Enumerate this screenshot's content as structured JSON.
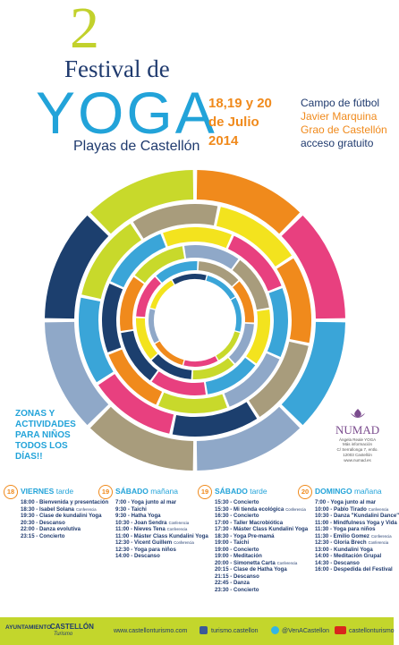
{
  "header": {
    "edition": "2",
    "title_line1": "Festival de",
    "title_main": "YOGA",
    "subtitle": "Playas de Castellón",
    "dates": [
      "18,19 y 20",
      "de Julio",
      "2014"
    ],
    "venue": [
      "Campo de fútbol",
      "Javier Marquina",
      "Grao de Castellón",
      "acceso gratuito"
    ]
  },
  "kids_note": [
    "ZONAS Y",
    "ACTIVIDADES",
    "PARA NIÑOS",
    "TODOS LOS",
    "DÍAS!!"
  ],
  "sponsor": {
    "name": "NUMAD",
    "tagline": "Ángela Reale YOGA",
    "info": [
      "Más información",
      "C/ Serrallonga 7, entlo.",
      "12003 Castellón",
      "www.numad.es"
    ]
  },
  "schedule": [
    {
      "day_number": "18",
      "day": "VIERNES",
      "part": "tarde",
      "items": [
        {
          "text": "18:00 - Bienvenida y presentación"
        },
        {
          "text": "18:30 - Isabel Solana",
          "tag": "Conferencia"
        },
        {
          "text": "19:30 - Clase de kundalini Yoga"
        },
        {
          "text": "20:30 - Descanso"
        },
        {
          "text": "22:00 - Danza evolutiva"
        },
        {
          "text": "23:15 - Concierto"
        }
      ]
    },
    {
      "day_number": "19",
      "day": "SÁBADO",
      "part": "mañana",
      "items": [
        {
          "text": "7:00 - Yoga junto al mar"
        },
        {
          "text": "9:30 - Taichi"
        },
        {
          "text": "9:30 - Hatha Yoga"
        },
        {
          "text": "10:30 - Joan Sendra",
          "tag": "Conferencia"
        },
        {
          "text": "11:00 - Nieves Tena",
          "tag": "Conferencia"
        },
        {
          "text": "11:00 - Máster Class Kundalini Yoga"
        },
        {
          "text": "12:30 - Vicent Guillem",
          "tag": "Conferencia"
        },
        {
          "text": "12:30 - Yoga para niños"
        },
        {
          "text": "14:00 - Descanso"
        }
      ]
    },
    {
      "day_number": "19",
      "day": "SÁBADO",
      "part": "tarde",
      "items": [
        {
          "text": "15:30 - Concierto"
        },
        {
          "text": "15:30 - Mi tienda ecológica",
          "tag": "Conferencia"
        },
        {
          "text": "16:30 - Concierto"
        },
        {
          "text": "17:00 - Taller Macrobiótica"
        },
        {
          "text": "17:30 - Máster Class Kundalini Yoga"
        },
        {
          "text": "18:30 - Yoga Pre-mamá"
        },
        {
          "text": "19:00 - Taichi"
        },
        {
          "text": "19:00 - Concierto"
        },
        {
          "text": "19:00 - Meditación"
        },
        {
          "text": "20:00 - Simonetta Carta",
          "tag": "Conferencia"
        },
        {
          "text": "20:15 - Clase de Hatha Yoga"
        },
        {
          "text": "21:15 - Descanso"
        },
        {
          "text": "22:45 - Danza"
        },
        {
          "text": "23:30 - Concierto"
        }
      ]
    },
    {
      "day_number": "20",
      "day": "DOMINGO",
      "part": "mañana",
      "items": [
        {
          "text": "7:00 - Yoga junto al mar"
        },
        {
          "text": "10:00 - Pablo Tirado",
          "tag": "Conferencia"
        },
        {
          "text": "10:30 - Danza \"Kundalini Dance\""
        },
        {
          "text": "11:00 - Mindfulness Yoga y Vida"
        },
        {
          "text": "11:30 - Yoga para niños"
        },
        {
          "text": "11:30 - Emilio Gomez",
          "tag": "Conferencia"
        },
        {
          "text": "12:30 - Gloria Brech",
          "tag": "Conferencia"
        },
        {
          "text": "13:00 - Kundalini Yoga"
        },
        {
          "text": "14:00 - Meditación Grupal"
        },
        {
          "text": "14:30 - Descanso"
        },
        {
          "text": "16:00 - Despedida del Festival"
        }
      ]
    }
  ],
  "footer": {
    "org": [
      "AYUNTAMIENTO",
      "CASTELLÓN",
      "Turismo"
    ],
    "website": "www.castellonturismo.com",
    "facebook": "turismo.castellon",
    "twitter": "@VenACastellon",
    "youtube": "castellonturismo"
  }
}
